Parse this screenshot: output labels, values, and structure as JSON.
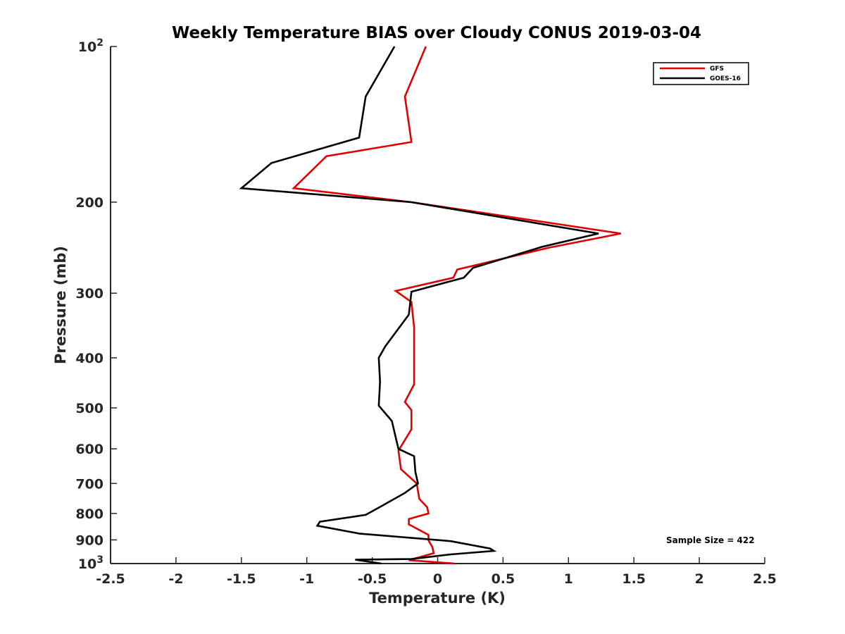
{
  "chart_data": {
    "type": "line",
    "title": "Weekly Temperature BIAS over Cloudy CONUS 2019-03-04",
    "xlabel": "Temperature (K)",
    "ylabel": "Pressure (mb)",
    "xlim": [
      -2.5,
      2.5
    ],
    "ylim": [
      100,
      1000
    ],
    "y_scale": "log",
    "y_reversed": true,
    "x_ticks": [
      "-2.5",
      "-2",
      "-1.5",
      "-1",
      "-0.5",
      "0",
      "0.5",
      "1",
      "1.5",
      "2",
      "2.5"
    ],
    "y_ticks": [
      {
        "value": 100,
        "base": "10",
        "exp": "2"
      },
      {
        "value": 200,
        "label": "200"
      },
      {
        "value": 300,
        "label": "300"
      },
      {
        "value": 400,
        "label": "400"
      },
      {
        "value": 500,
        "label": "500"
      },
      {
        "value": 600,
        "label": "600"
      },
      {
        "value": 700,
        "label": "700"
      },
      {
        "value": 800,
        "label": "800"
      },
      {
        "value": 900,
        "label": "900"
      },
      {
        "value": 1000,
        "base": "10",
        "exp": "3"
      }
    ],
    "grid": false,
    "legend_position": "top-right",
    "annotation": "Sample Size = 422",
    "series": [
      {
        "name": "GFS",
        "color": "#e00000",
        "points": [
          [
            -0.09,
            100
          ],
          [
            -0.25,
            125
          ],
          [
            -0.2,
            153
          ],
          [
            -0.85,
            163
          ],
          [
            -1.1,
            188
          ],
          [
            -0.2,
            200
          ],
          [
            1.4,
            230
          ],
          [
            0.85,
            245
          ],
          [
            0.15,
            270
          ],
          [
            0.12,
            280
          ],
          [
            -0.32,
            297
          ],
          [
            -0.2,
            312
          ],
          [
            -0.18,
            350
          ],
          [
            -0.18,
            450
          ],
          [
            -0.25,
            487
          ],
          [
            -0.2,
            505
          ],
          [
            -0.2,
            550
          ],
          [
            -0.3,
            605
          ],
          [
            -0.28,
            657
          ],
          [
            -0.16,
            700
          ],
          [
            -0.14,
            750
          ],
          [
            -0.08,
            778
          ],
          [
            -0.07,
            800
          ],
          [
            -0.22,
            820
          ],
          [
            -0.22,
            840
          ],
          [
            -0.07,
            880
          ],
          [
            -0.07,
            902
          ],
          [
            -0.04,
            930
          ],
          [
            -0.03,
            955
          ],
          [
            -0.22,
            985
          ],
          [
            0.13,
            1000
          ]
        ]
      },
      {
        "name": "GOES-16",
        "color": "#000000",
        "points": [
          [
            -0.33,
            100
          ],
          [
            -0.55,
            125
          ],
          [
            -0.6,
            150
          ],
          [
            -1.27,
            168
          ],
          [
            -1.5,
            188
          ],
          [
            -0.2,
            200
          ],
          [
            1.23,
            230
          ],
          [
            0.8,
            244
          ],
          [
            0.27,
            268
          ],
          [
            0.2,
            280
          ],
          [
            -0.2,
            298
          ],
          [
            -0.22,
            330
          ],
          [
            -0.4,
            380
          ],
          [
            -0.45,
            400
          ],
          [
            -0.44,
            445
          ],
          [
            -0.45,
            495
          ],
          [
            -0.35,
            530
          ],
          [
            -0.3,
            600
          ],
          [
            -0.18,
            620
          ],
          [
            -0.17,
            665
          ],
          [
            -0.15,
            700
          ],
          [
            -0.25,
            730
          ],
          [
            -0.42,
            772
          ],
          [
            -0.55,
            805
          ],
          [
            -0.9,
            830
          ],
          [
            -0.92,
            845
          ],
          [
            -0.6,
            875
          ],
          [
            0.1,
            905
          ],
          [
            0.4,
            935
          ],
          [
            0.43,
            945
          ],
          [
            0.1,
            960
          ],
          [
            -0.2,
            980
          ],
          [
            -0.63,
            983
          ],
          [
            -0.43,
            1000
          ]
        ]
      }
    ]
  }
}
